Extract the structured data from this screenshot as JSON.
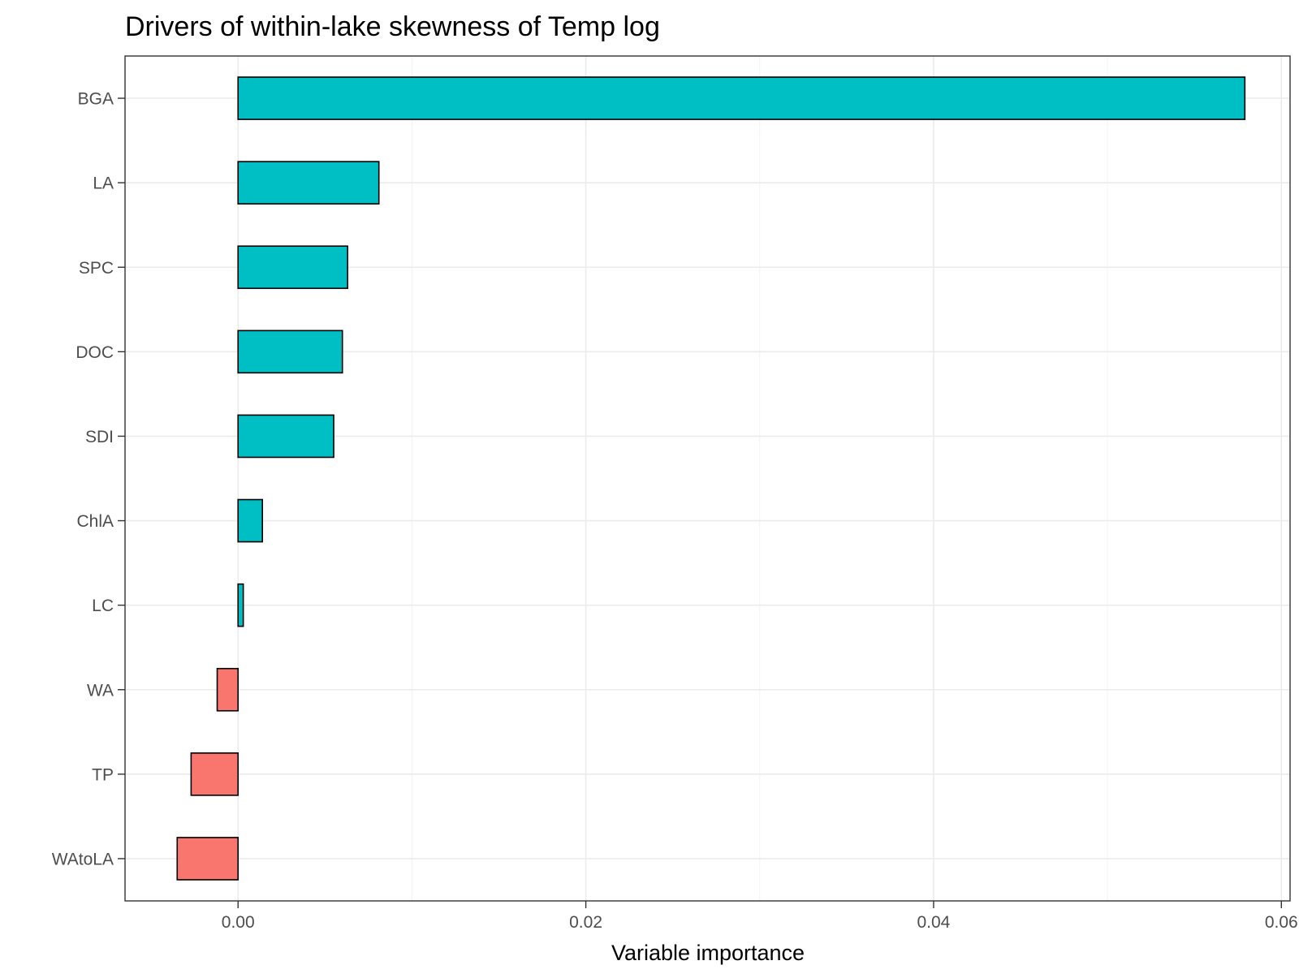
{
  "chart_data": {
    "type": "bar",
    "orientation": "horizontal",
    "title": "Drivers of within-lake skewness of Temp log",
    "xlabel": "Variable importance",
    "ylabel": "",
    "xlim": [
      -0.0065,
      0.0605
    ],
    "x_ticks": [
      0.0,
      0.02,
      0.04,
      0.06
    ],
    "x_tick_labels": [
      "0.00",
      "0.02",
      "0.04",
      "0.06"
    ],
    "grid": true,
    "legend": "none",
    "categories": [
      "BGA",
      "LA",
      "SPC",
      "DOC",
      "SDI",
      "ChlA",
      "LC",
      "WA",
      "TP",
      "WAtoLA"
    ],
    "values": [
      0.0579,
      0.0081,
      0.0063,
      0.006,
      0.0055,
      0.0014,
      0.0003,
      -0.0012,
      -0.0027,
      -0.0035
    ],
    "colors": {
      "positive": "#00BFC4",
      "negative": "#F8766D",
      "outline": "#000000",
      "panel_border": "#333333",
      "grid": "#EBEBEB",
      "tick_text": "#4D4D4D"
    }
  }
}
